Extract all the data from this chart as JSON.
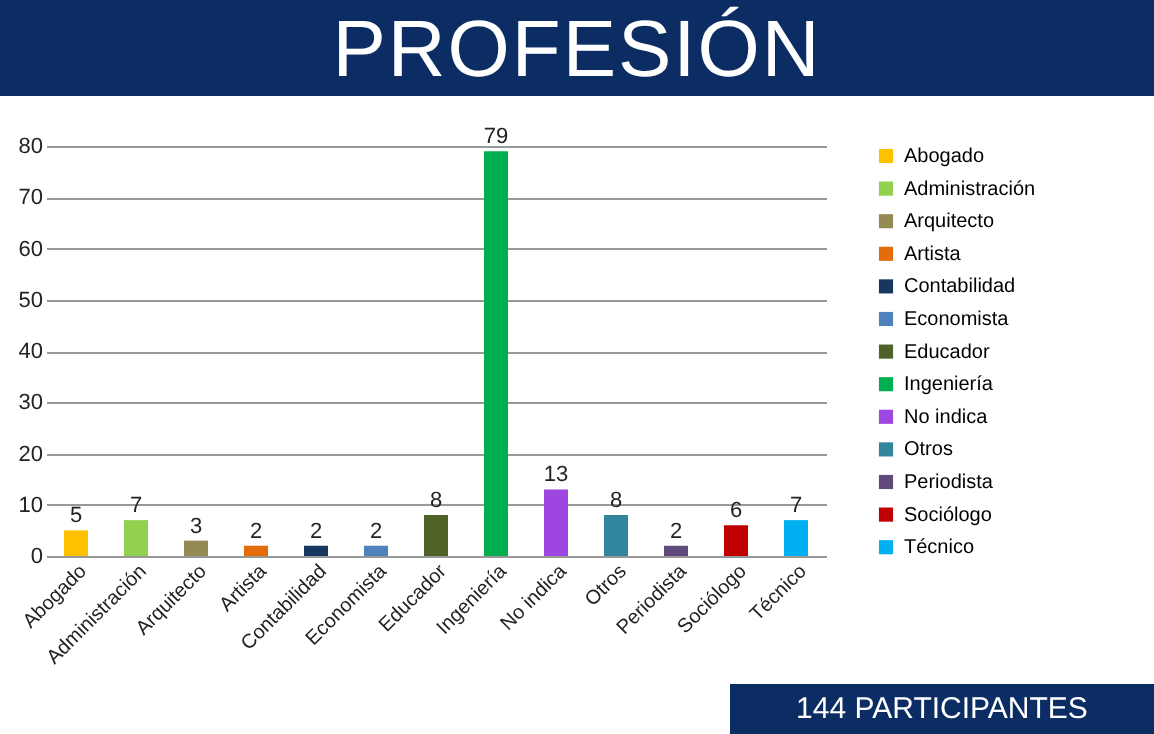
{
  "chart_data": {
    "type": "bar",
    "title": "PROFESIÓN",
    "categories": [
      "Abogado",
      "Administración",
      "Arquitecto",
      "Artista",
      "Contabilidad",
      "Economista",
      "Educador",
      "Ingeniería",
      "No indica",
      "Otros",
      "Periodista",
      "Sociólogo",
      "Técnico"
    ],
    "series": [
      {
        "name": "Abogado",
        "color": "#ffc000",
        "values": [
          5,
          null,
          null,
          null,
          null,
          null,
          null,
          null,
          null,
          null,
          null,
          null,
          null
        ]
      },
      {
        "name": "Administración",
        "color": "#92d050",
        "values": [
          null,
          7,
          null,
          null,
          null,
          null,
          null,
          null,
          null,
          null,
          null,
          null,
          null
        ]
      },
      {
        "name": "Arquitecto",
        "color": "#948a54",
        "values": [
          null,
          null,
          3,
          null,
          null,
          null,
          null,
          null,
          null,
          null,
          null,
          null,
          null
        ]
      },
      {
        "name": "Artista",
        "color": "#e46c0a",
        "values": [
          null,
          null,
          null,
          2,
          null,
          null,
          null,
          null,
          null,
          null,
          null,
          null,
          null
        ]
      },
      {
        "name": "Contabilidad",
        "color": "#17375e",
        "values": [
          null,
          null,
          null,
          null,
          2,
          null,
          null,
          null,
          null,
          null,
          null,
          null,
          null
        ]
      },
      {
        "name": "Economista",
        "color": "#4f81bd",
        "values": [
          null,
          null,
          null,
          null,
          null,
          2,
          null,
          null,
          null,
          null,
          null,
          null,
          null
        ]
      },
      {
        "name": "Educador",
        "color": "#4f6228",
        "values": [
          null,
          null,
          null,
          null,
          null,
          null,
          8,
          null,
          null,
          null,
          null,
          null,
          null
        ]
      },
      {
        "name": "Ingeniería",
        "color": "#00b050",
        "values": [
          null,
          null,
          null,
          null,
          null,
          null,
          null,
          79,
          null,
          null,
          null,
          null,
          null
        ]
      },
      {
        "name": "No indica",
        "color": "#9e47e0",
        "values": [
          null,
          null,
          null,
          null,
          null,
          null,
          null,
          null,
          13,
          null,
          null,
          null,
          null
        ]
      },
      {
        "name": "Otros",
        "color": "#31859c",
        "values": [
          null,
          null,
          null,
          null,
          null,
          null,
          null,
          null,
          null,
          8,
          null,
          null,
          null
        ]
      },
      {
        "name": "Periodista",
        "color": "#604a7b",
        "values": [
          null,
          null,
          null,
          null,
          null,
          null,
          null,
          null,
          null,
          null,
          2,
          null,
          null
        ]
      },
      {
        "name": "Sociólogo",
        "color": "#c00000",
        "values": [
          null,
          null,
          null,
          null,
          null,
          null,
          null,
          null,
          null,
          null,
          null,
          6,
          null
        ]
      },
      {
        "name": "Técnico",
        "color": "#00b0f0",
        "values": [
          null,
          null,
          null,
          null,
          null,
          null,
          null,
          null,
          null,
          null,
          null,
          null,
          7
        ]
      }
    ],
    "ylim": [
      0,
      80
    ],
    "yticks": [
      0,
      10,
      20,
      30,
      40,
      50,
      60,
      70,
      80
    ],
    "grid": "y",
    "legend": "right",
    "data_labels": true,
    "annotations": [
      "144 PARTICIPANTES"
    ]
  }
}
